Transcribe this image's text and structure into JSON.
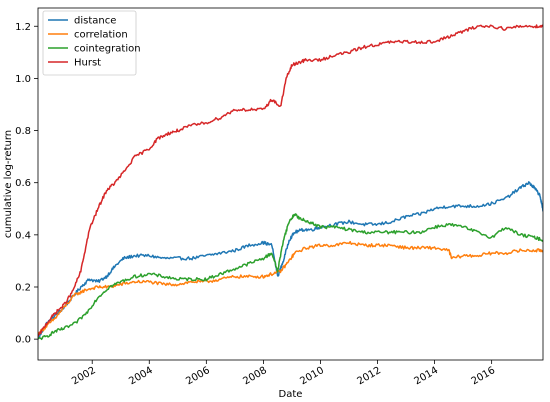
{
  "chart_data": {
    "type": "line",
    "title": "",
    "xlabel": "Date",
    "ylabel": "cumulative log-return",
    "xlim": [
      2000.1,
      2017.8
    ],
    "ylim": [
      -0.08,
      1.27
    ],
    "grid": false,
    "legend_position": "top-left",
    "x_ticks": [
      {
        "value": 2002,
        "label": "2002"
      },
      {
        "value": 2004,
        "label": "2004"
      },
      {
        "value": 2006,
        "label": "2006"
      },
      {
        "value": 2008,
        "label": "2008"
      },
      {
        "value": 2010,
        "label": "2010"
      },
      {
        "value": 2012,
        "label": "2012"
      },
      {
        "value": 2014,
        "label": "2014"
      },
      {
        "value": 2016,
        "label": "2016"
      }
    ],
    "y_ticks": [
      {
        "value": 0.0,
        "label": "0.0"
      },
      {
        "value": 0.2,
        "label": "0.2"
      },
      {
        "value": 0.4,
        "label": "0.4"
      },
      {
        "value": 0.6,
        "label": "0.6"
      },
      {
        "value": 0.8,
        "label": "0.8"
      },
      {
        "value": 1.0,
        "label": "1.0"
      },
      {
        "value": 1.2,
        "label": "1.2"
      }
    ],
    "series": [
      {
        "name": "distance",
        "color": "#1f77b4",
        "x": [
          2000.1,
          2000.4,
          2000.7,
          2001.0,
          2001.3,
          2001.6,
          2001.9,
          2002.2,
          2002.5,
          2002.8,
          2003.1,
          2003.5,
          2004.0,
          2004.5,
          2005.0,
          2005.5,
          2006.0,
          2006.5,
          2007.0,
          2007.5,
          2008.0,
          2008.3,
          2008.5,
          2008.7,
          2008.9,
          2009.1,
          2009.4,
          2009.7,
          2010.0,
          2010.5,
          2011.0,
          2011.5,
          2012.0,
          2012.5,
          2013.0,
          2013.5,
          2014.0,
          2014.5,
          2015.0,
          2015.5,
          2016.0,
          2016.5,
          2017.0,
          2017.3,
          2017.5,
          2017.7,
          2017.8
        ],
        "y": [
          0.0,
          0.06,
          0.09,
          0.12,
          0.16,
          0.2,
          0.23,
          0.22,
          0.24,
          0.28,
          0.31,
          0.32,
          0.32,
          0.31,
          0.31,
          0.31,
          0.32,
          0.33,
          0.34,
          0.36,
          0.37,
          0.36,
          0.24,
          0.3,
          0.38,
          0.41,
          0.42,
          0.42,
          0.43,
          0.44,
          0.45,
          0.44,
          0.44,
          0.45,
          0.47,
          0.48,
          0.5,
          0.51,
          0.51,
          0.51,
          0.52,
          0.54,
          0.58,
          0.6,
          0.58,
          0.55,
          0.49
        ]
      },
      {
        "name": "correlation",
        "color": "#ff7f0e",
        "x": [
          2000.1,
          2000.4,
          2000.7,
          2001.0,
          2001.4,
          2001.8,
          2002.2,
          2002.6,
          2003.0,
          2003.5,
          2004.0,
          2004.5,
          2005.0,
          2005.5,
          2006.0,
          2006.5,
          2007.0,
          2007.5,
          2008.0,
          2008.3,
          2008.6,
          2008.9,
          2009.1,
          2009.5,
          2010.0,
          2010.5,
          2011.0,
          2011.5,
          2012.0,
          2012.5,
          2013.0,
          2013.5,
          2014.0,
          2014.5,
          2014.6,
          2015.0,
          2015.5,
          2016.0,
          2016.5,
          2017.0,
          2017.5,
          2017.8
        ],
        "y": [
          0.02,
          0.05,
          0.08,
          0.12,
          0.17,
          0.19,
          0.2,
          0.2,
          0.21,
          0.22,
          0.22,
          0.21,
          0.21,
          0.22,
          0.22,
          0.23,
          0.24,
          0.24,
          0.24,
          0.25,
          0.26,
          0.3,
          0.33,
          0.35,
          0.36,
          0.36,
          0.37,
          0.36,
          0.36,
          0.36,
          0.35,
          0.35,
          0.35,
          0.34,
          0.31,
          0.32,
          0.32,
          0.33,
          0.33,
          0.34,
          0.34,
          0.34
        ]
      },
      {
        "name": "cointegration",
        "color": "#2ca02c",
        "x": [
          2000.1,
          2000.4,
          2000.7,
          2001.0,
          2001.4,
          2001.8,
          2002.2,
          2002.6,
          2003.0,
          2003.5,
          2004.0,
          2004.5,
          2005.0,
          2005.5,
          2006.0,
          2006.5,
          2007.0,
          2007.5,
          2008.0,
          2008.3,
          2008.5,
          2008.7,
          2008.9,
          2009.1,
          2009.3,
          2009.6,
          2010.0,
          2010.5,
          2011.0,
          2011.5,
          2012.0,
          2012.5,
          2013.0,
          2013.5,
          2014.0,
          2014.5,
          2015.0,
          2015.5,
          2016.0,
          2016.5,
          2017.0,
          2017.5,
          2017.8
        ],
        "y": [
          0.0,
          0.01,
          0.03,
          0.04,
          0.06,
          0.1,
          0.16,
          0.2,
          0.22,
          0.24,
          0.25,
          0.24,
          0.23,
          0.23,
          0.23,
          0.25,
          0.27,
          0.29,
          0.31,
          0.33,
          0.26,
          0.38,
          0.45,
          0.48,
          0.46,
          0.45,
          0.43,
          0.43,
          0.42,
          0.41,
          0.41,
          0.41,
          0.41,
          0.41,
          0.43,
          0.44,
          0.43,
          0.41,
          0.39,
          0.43,
          0.4,
          0.39,
          0.38
        ]
      },
      {
        "name": "Hurst",
        "color": "#d62728",
        "x": [
          2000.1,
          2000.4,
          2000.7,
          2001.0,
          2001.3,
          2001.6,
          2001.9,
          2002.2,
          2002.5,
          2002.8,
          2003.1,
          2003.5,
          2004.0,
          2004.3,
          2004.7,
          2005.0,
          2005.5,
          2006.0,
          2006.5,
          2007.0,
          2007.5,
          2008.0,
          2008.3,
          2008.6,
          2008.8,
          2009.0,
          2009.2,
          2009.5,
          2010.0,
          2010.5,
          2011.0,
          2011.5,
          2012.0,
          2012.5,
          2013.0,
          2013.5,
          2014.0,
          2014.5,
          2015.0,
          2015.5,
          2016.0,
          2016.5,
          2017.0,
          2017.5,
          2017.8
        ],
        "y": [
          0.01,
          0.06,
          0.1,
          0.13,
          0.18,
          0.26,
          0.42,
          0.5,
          0.57,
          0.6,
          0.64,
          0.7,
          0.73,
          0.77,
          0.79,
          0.8,
          0.82,
          0.83,
          0.85,
          0.88,
          0.88,
          0.88,
          0.92,
          0.89,
          1.0,
          1.05,
          1.06,
          1.07,
          1.07,
          1.09,
          1.1,
          1.12,
          1.13,
          1.14,
          1.14,
          1.14,
          1.14,
          1.16,
          1.18,
          1.2,
          1.2,
          1.19,
          1.2,
          1.2,
          1.2
        ]
      }
    ]
  }
}
